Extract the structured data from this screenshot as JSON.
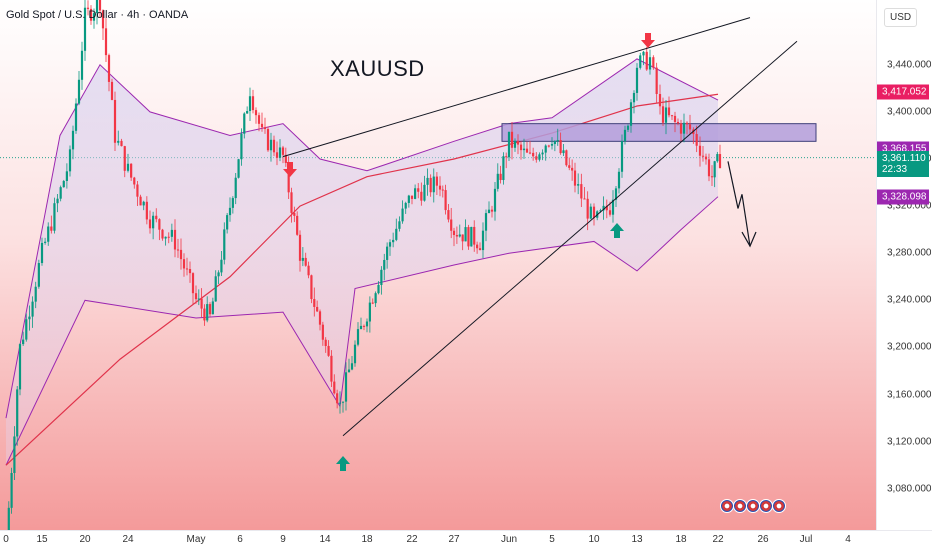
{
  "header": {
    "symbol_line": "Gold Spot / U.S. Dollar · 4h · OANDA"
  },
  "currency_button": "USD",
  "chart_data": {
    "type": "candlestick",
    "title": "XAUUSD",
    "ylim": [
      3045,
      3495
    ],
    "y_ticks": [
      "3,080.000",
      "3,120.000",
      "3,160.000",
      "3,200.000",
      "3,240.000",
      "3,280.000",
      "3,320.000",
      "3,360.000",
      "3,400.000",
      "3,440.000"
    ],
    "x_ticks": [
      "0",
      "15",
      "20",
      "24",
      "May",
      "6",
      "9",
      "14",
      "18",
      "22",
      "27",
      "Jun",
      "5",
      "10",
      "13",
      "18",
      "22",
      "26",
      "Jul",
      "4"
    ],
    "series": [
      {
        "name": "price",
        "x": [
          "10",
          "20",
          "24",
          "May",
          "6",
          "9",
          "14",
          "18",
          "27",
          "Jun",
          "5",
          "10",
          "13",
          "17",
          "20",
          "22"
        ],
        "values": [
          3030,
          3500,
          3370,
          3235,
          3430,
          3365,
          3150,
          3230,
          3290,
          3375,
          3380,
          3305,
          3440,
          3385,
          3345,
          3361
        ]
      },
      {
        "name": "moving-average",
        "values": [
          3100,
          3190,
          3260,
          3320,
          3345,
          3360,
          3382,
          3405,
          3415
        ]
      },
      {
        "name": "channel-upper",
        "values": [
          3140,
          3440,
          3400,
          3380,
          3430,
          3380,
          3360,
          3380,
          3400,
          3395,
          3430,
          3400,
          3410
        ]
      },
      {
        "name": "channel-lower",
        "values": [
          3100,
          3240,
          3220,
          3230,
          3250,
          3150,
          3270,
          3280,
          3290,
          3265,
          3300,
          3310,
          3328
        ]
      }
    ],
    "trendlines": [
      {
        "name": "upper-trendline",
        "from": [
          "9",
          3362
        ],
        "to": [
          "26",
          3480
        ]
      },
      {
        "name": "lower-trendline",
        "from": [
          "15",
          3125
        ],
        "to": [
          "Jul",
          3460
        ]
      }
    ],
    "resistance_zone": {
      "from": 3390,
      "to": 3375
    },
    "price_labels": [
      {
        "text": "3,417.052",
        "value": 3417.052,
        "color": "#e91e63"
      },
      {
        "text": "3,368.155",
        "value": 3368.155,
        "color": "#9c27b0"
      },
      {
        "text": "3,361.110",
        "value": 3361.11,
        "color": "#089981",
        "sub": "22:33"
      },
      {
        "text": "3,328.098",
        "value": 3328.098,
        "color": "#9c27b0"
      }
    ],
    "annotations": [
      {
        "type": "arrow-down",
        "color": "#f23645",
        "at": "9"
      },
      {
        "type": "arrow-down",
        "color": "#f23645",
        "at": "13"
      },
      {
        "type": "arrow-up",
        "color": "#089981",
        "at": "15"
      },
      {
        "type": "arrow-up",
        "color": "#089981",
        "at": "10"
      }
    ],
    "grid": false
  }
}
